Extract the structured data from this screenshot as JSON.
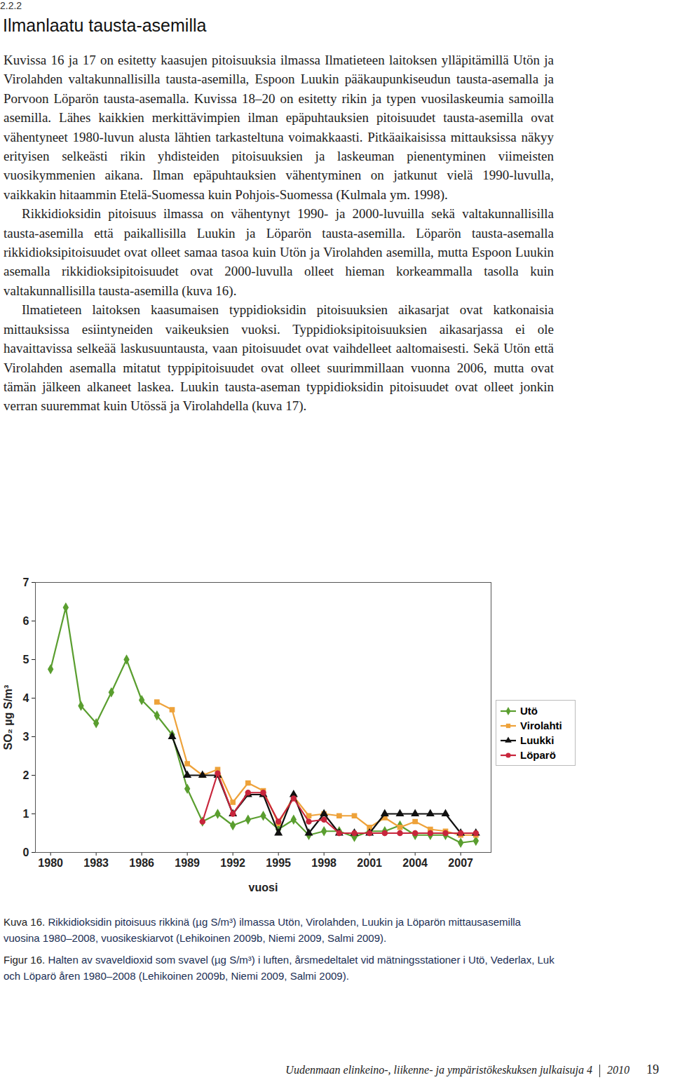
{
  "header": {
    "section": "2.2.2",
    "title": "Ilmanlaatu tausta-asemilla"
  },
  "paragraphs": [
    "Kuvissa 16 ja 17 on esitetty kaasujen pitoisuuksia ilmassa Ilmatieteen laitoksen ylläpitämillä Utön ja Virolahden valtakunnallisilla tausta-asemilla, Espoon Luukin pääkaupunkiseudun tausta-asemalla ja Porvoon Löparön tausta-asemalla. Kuvissa 18–20 on esitetty rikin ja typen vuosilaskeumia samoilla asemilla. Lähes kaikkien merkittävimpien ilman epäpuhtauksien pitoisuudet tausta-asemilla ovat vähentyneet 1980-luvun alusta lähtien tarkasteltuna voimakkaasti. Pitkäaikaisissa mittauksissa näkyy erityisen selkeästi rikin yhdisteiden pitoisuuksien ja laskeuman pienentyminen viimeisten vuosikymmenien aikana. Ilman epäpuhtauksien vähentyminen on jatkunut vielä 1990-luvulla, vaikkakin hitaammin Etelä-Suomessa kuin Pohjois-Suomessa (Kulmala ym. 1998).",
    "Rikkidioksidin pitoisuus ilmassa on vähentynyt 1990- ja 2000-luvuilla sekä valtakunnallisilla tausta-asemilla että paikallisilla Luukin ja Löparön tausta-asemilla. Löparön tausta-asemalla rikkidioksipitoisuudet ovat olleet samaa tasoa kuin Utön ja Virolahden asemilla, mutta Espoon Luukin asemalla rikkidioksipitoisuudet ovat 2000-luvulla olleet hieman korkeammalla tasolla kuin valtakunnallisilla tausta-asemilla (kuva 16).",
    "Ilmatieteen laitoksen kaasumaisen typpidioksidin pitoisuuksien aikasarjat ovat katkonaisia mittauksissa esiintyneiden vaikeuksien vuoksi. Typpidioksipitoisuuksien aikasarjassa ei ole havaittavissa selkeää laskusuuntausta, vaan pitoisuudet ovat vaihdelleet aaltomaisesti. Sekä Utön että Virolahden asemalla mitatut typpipitoisuudet ovat olleet suurimmillaan vuonna 2006, mutta ovat tämän jälkeen alkaneet laskea. Luukin tausta-aseman typpidioksidin pitoisuudet ovat olleet jonkin verran suuremmat kuin Utössä ja Virolahdella (kuva 17)."
  ],
  "chart_data": {
    "type": "line",
    "x_label": "vuosi",
    "y_label": "SO₂ µg S/m³",
    "x": [
      1980,
      1981,
      1982,
      1983,
      1984,
      1985,
      1986,
      1987,
      1988,
      1989,
      1990,
      1991,
      1992,
      1993,
      1994,
      1995,
      1996,
      1997,
      1998,
      1999,
      2000,
      2001,
      2002,
      2003,
      2004,
      2005,
      2006,
      2007,
      2008
    ],
    "xlim": [
      1979,
      2009
    ],
    "xticks": [
      1980,
      1983,
      1986,
      1989,
      1992,
      1995,
      1998,
      2001,
      2004,
      2007
    ],
    "ylim": [
      0,
      7
    ],
    "yticks": [
      0,
      1,
      2,
      3,
      4,
      5,
      6,
      7
    ],
    "grid": false,
    "legend": "right",
    "series": [
      {
        "name": "Utö",
        "color": "#5a9e2f",
        "marker": "diamond",
        "values": [
          4.75,
          6.35,
          3.8,
          3.35,
          4.15,
          5.0,
          3.95,
          3.55,
          3.05,
          1.65,
          0.8,
          1.0,
          0.7,
          0.85,
          0.95,
          0.6,
          0.85,
          0.45,
          0.55,
          0.55,
          0.4,
          0.55,
          0.55,
          0.7,
          0.45,
          0.45,
          0.45,
          0.25,
          0.3
        ]
      },
      {
        "name": "Virolahti",
        "color": "#eea23a",
        "marker": "square",
        "values": [
          null,
          null,
          null,
          null,
          null,
          null,
          null,
          3.9,
          3.7,
          2.3,
          2.0,
          2.15,
          1.3,
          1.8,
          1.6,
          0.75,
          1.45,
          0.95,
          1.0,
          0.95,
          0.95,
          0.65,
          0.9,
          0.65,
          0.8,
          0.6,
          0.55,
          0.45,
          0.45
        ]
      },
      {
        "name": "Luukki",
        "color": "#111111",
        "marker": "triangle",
        "values": [
          null,
          null,
          null,
          null,
          null,
          null,
          null,
          null,
          3.0,
          2.0,
          2.0,
          2.0,
          1.0,
          1.5,
          1.5,
          0.5,
          1.5,
          0.5,
          1.0,
          0.5,
          0.5,
          0.5,
          1.0,
          1.0,
          1.0,
          1.0,
          1.0,
          0.5,
          0.5
        ]
      },
      {
        "name": "Löparö",
        "color": "#c8263c",
        "marker": "circle",
        "values": [
          null,
          null,
          null,
          null,
          null,
          null,
          null,
          null,
          null,
          null,
          0.8,
          2.05,
          1.0,
          1.55,
          1.55,
          0.8,
          1.4,
          0.8,
          0.85,
          0.5,
          0.5,
          0.5,
          0.5,
          0.5,
          0.5,
          0.5,
          0.5,
          0.5,
          0.5
        ]
      }
    ]
  },
  "captions": [
    {
      "label": "Kuva 16.",
      "text": "Rikkidioksidin pitoisuus rikkinä (µg S/m³) ilmassa Utön, Virolahden, Luukin ja Löparön mittausasemilla vuosina 1980–2008, vuosikeskiarvot (Lehikoinen 2009b, Niemi 2009, Salmi 2009)."
    },
    {
      "label": "Figur 16.",
      "text": "Halten av svaveldioxid som svavel (µg S/m³) i luften, årsmedeltalet vid mätningsstationer i Utö, Vederlax, Luk och Löparö åren 1980–2008 (Lehikoinen 2009b, Niemi 2009, Salmi 2009)."
    }
  ],
  "footer": {
    "series": "Uudenmaan elinkeino-, liikenne- ja ympäristökeskuksen julkaisuja 4",
    "year": "2010",
    "page": "19"
  }
}
